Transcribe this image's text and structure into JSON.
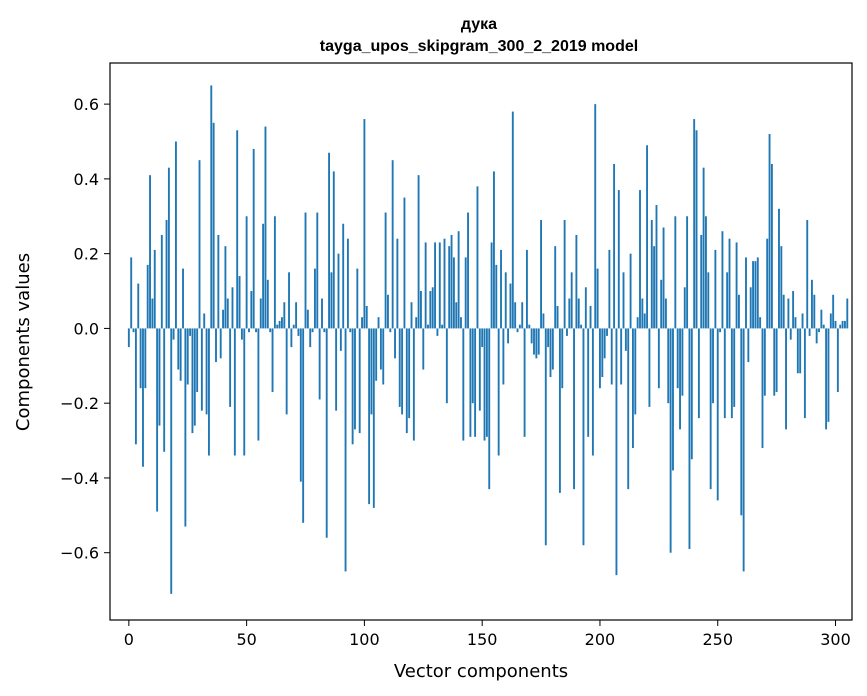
{
  "chart_data": {
    "type": "bar",
    "title_lines": [
      "дука",
      "tayga_upos_skipgram_300_2_2019 model"
    ],
    "xlabel": "Vector components",
    "ylabel": "Components values",
    "xlim": [
      -8,
      307
    ],
    "ylim": [
      -0.78,
      0.71
    ],
    "xticks": [
      {
        "value": 0,
        "label": "0"
      },
      {
        "value": 50,
        "label": "50"
      },
      {
        "value": 100,
        "label": "100"
      },
      {
        "value": 150,
        "label": "150"
      },
      {
        "value": 200,
        "label": "200"
      },
      {
        "value": 250,
        "label": "250"
      },
      {
        "value": 300,
        "label": "300"
      }
    ],
    "yticks": [
      {
        "value": -0.6,
        "label": "−0.6"
      },
      {
        "value": -0.4,
        "label": "−0.4"
      },
      {
        "value": -0.2,
        "label": "−0.2"
      },
      {
        "value": 0.0,
        "label": "0.0"
      },
      {
        "value": 0.2,
        "label": "0.2"
      },
      {
        "value": 0.4,
        "label": "0.4"
      },
      {
        "value": 0.6,
        "label": "0.6"
      }
    ],
    "grid": false,
    "bar_color": "#1f77b4",
    "values": [
      -0.05,
      0.19,
      -0.01,
      -0.31,
      0.12,
      -0.16,
      -0.37,
      -0.16,
      0.17,
      0.41,
      0.08,
      0.21,
      -0.49,
      -0.26,
      0.25,
      -0.33,
      0.29,
      0.43,
      -0.71,
      -0.03,
      0.5,
      -0.11,
      -0.14,
      0.16,
      -0.53,
      -0.15,
      -0.02,
      -0.28,
      -0.26,
      -0.17,
      0.45,
      -0.22,
      0.04,
      -0.23,
      -0.34,
      0.65,
      0.55,
      -0.09,
      0.25,
      -0.08,
      0.05,
      0.22,
      0.08,
      -0.21,
      0.11,
      -0.34,
      0.53,
      0.14,
      -0.03,
      -0.34,
      0.3,
      -0.01,
      0.1,
      0.48,
      -0.01,
      -0.3,
      0.08,
      0.28,
      0.54,
      0.13,
      -0.01,
      -0.17,
      0.3,
      0.01,
      0.02,
      0.03,
      0.07,
      -0.23,
      0.15,
      -0.05,
      0.01,
      0.07,
      -0.02,
      -0.41,
      -0.52,
      0.31,
      0.05,
      -0.05,
      -0.01,
      0.16,
      0.31,
      -0.19,
      0.08,
      -0.01,
      -0.56,
      0.47,
      0.15,
      0.42,
      -0.22,
      0.2,
      -0.06,
      0.28,
      -0.65,
      0.24,
      -0.01,
      -0.31,
      -0.27,
      0.16,
      -0.28,
      0.03,
      0.56,
      0.06,
      -0.47,
      -0.23,
      -0.48,
      -0.14,
      0.03,
      -0.11,
      -0.15,
      0.31,
      0.09,
      -0.01,
      0.45,
      -0.08,
      0.24,
      -0.21,
      -0.23,
      0.35,
      -0.28,
      -0.24,
      0.07,
      -0.3,
      0.03,
      0.41,
      0.1,
      -0.11,
      0.23,
      0.01,
      0.1,
      0.11,
      0.23,
      -0.02,
      0.23,
      0.01,
      0.24,
      -0.2,
      0.22,
      0.25,
      0.19,
      0.07,
      0.26,
      0.03,
      -0.3,
      0.19,
      0.31,
      -0.29,
      -0.2,
      -0.29,
      0.38,
      -0.22,
      -0.05,
      -0.3,
      -0.29,
      -0.43,
      0.23,
      0.42,
      0.17,
      -0.34,
      0.21,
      -0.15,
      0.15,
      -0.04,
      0.12,
      0.58,
      0.07,
      -0.01,
      0.01,
      0.07,
      -0.29,
      0.21,
      0.01,
      -0.04,
      -0.07,
      -0.08,
      -0.07,
      0.29,
      0.04,
      -0.58,
      -0.05,
      -0.13,
      -0.11,
      0.22,
      0.06,
      -0.44,
      -0.16,
      0.29,
      -0.02,
      0.08,
      0.15,
      -0.43,
      0.25,
      0.08,
      0.01,
      -0.58,
      0.11,
      -0.29,
      0.06,
      -0.34,
      0.6,
      0.16,
      -0.16,
      -0.13,
      -0.08,
      -0.02,
      0.21,
      -0.15,
      0.44,
      -0.66,
      0.37,
      -0.15,
      0.15,
      -0.06,
      -0.43,
      0.2,
      -0.32,
      -0.23,
      0.03,
      0.37,
      0.08,
      0.04,
      0.49,
      -0.21,
      0.29,
      0.22,
      0.33,
      -0.16,
      0.13,
      0.27,
      0.08,
      -0.2,
      -0.6,
      -0.38,
      0.3,
      -0.16,
      -0.27,
      -0.18,
      0.11,
      0.3,
      -0.59,
      -0.35,
      0.56,
      0.53,
      -0.24,
      0.25,
      0.43,
      0.3,
      0.15,
      -0.43,
      -0.2,
      0.21,
      -0.46,
      -0.01,
      0.26,
      -0.24,
      0.15,
      0.24,
      -0.24,
      -0.21,
      0.23,
      0.09,
      -0.5,
      -0.65,
      0.19,
      -0.09,
      0.11,
      0.18,
      0.18,
      0.19,
      0.03,
      -0.32,
      -0.18,
      0.24,
      0.52,
      0.44,
      -0.18,
      -0.17,
      0.32,
      0.22,
      0.09,
      -0.27,
      0.08,
      -0.03,
      0.1,
      0.03,
      -0.12,
      -0.12,
      0.04,
      -0.24,
      0.29,
      -0.02,
      0.13,
      0.09,
      -0.04,
      -0.01,
      0.05,
      0.01,
      -0.27,
      -0.25,
      0.04,
      0.09,
      0.02,
      -0.17,
      0.01,
      0.02,
      0.02,
      0.08
    ]
  }
}
